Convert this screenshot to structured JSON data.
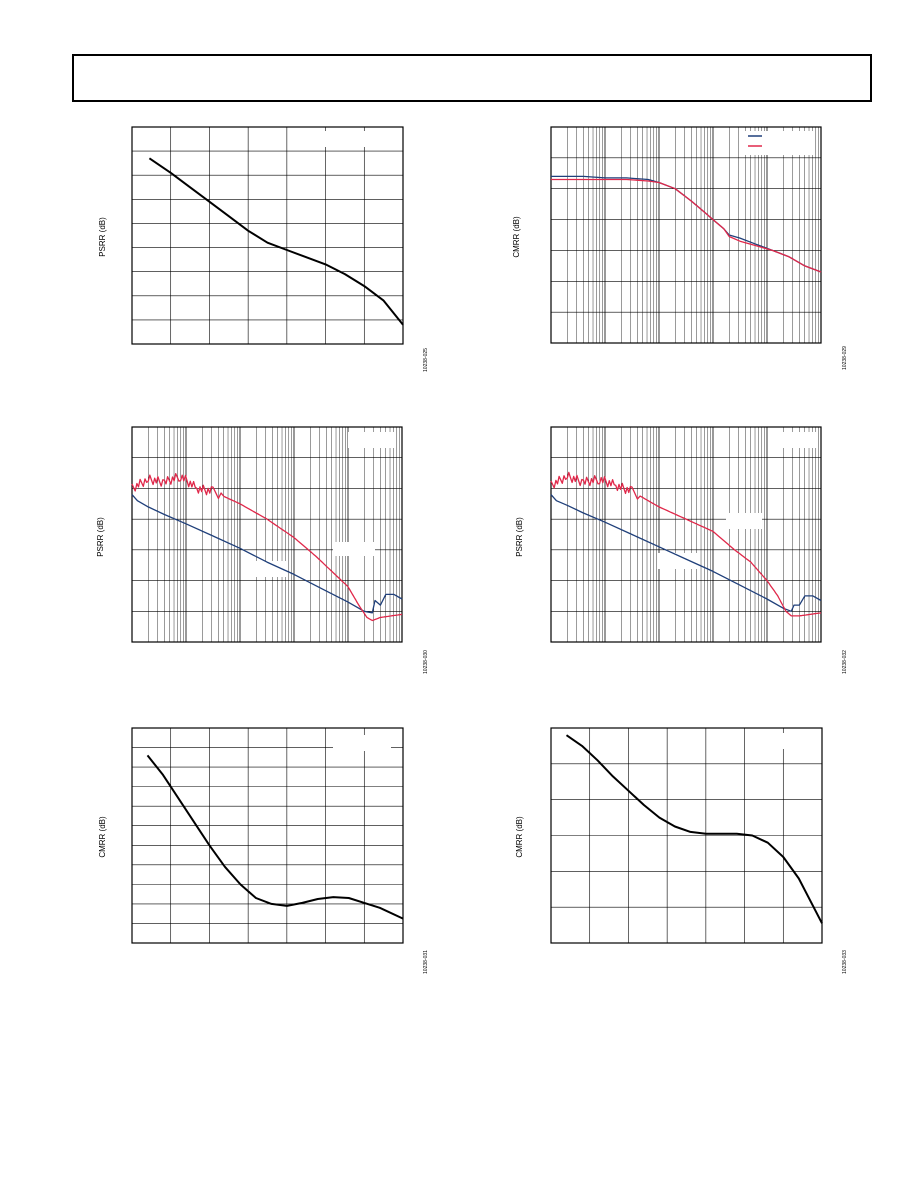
{
  "page": {
    "header_text": ""
  },
  "colors": {
    "black": "#000000",
    "blue": "#1f3f7a",
    "red": "#e0284a",
    "grid": "#000000"
  },
  "chart_data": [
    {
      "id": "psrr-top-left",
      "type": "line",
      "title": "",
      "xlabel": "",
      "ylabel": "PSRR (dB)",
      "figure_id": "10238-025",
      "x_scale": "linear",
      "x_divisions": 7,
      "y_divisions": 9,
      "xlim": [
        0,
        7
      ],
      "ylim": [
        0,
        9
      ],
      "legend": "top-right (blank box)",
      "series": [
        {
          "color": "black",
          "x": [
            0.45,
            1.0,
            1.5,
            2.0,
            2.5,
            3.0,
            3.5,
            4.0,
            4.5,
            5.0,
            5.5,
            6.0,
            6.5,
            7.0
          ],
          "y": [
            7.7,
            7.1,
            6.5,
            5.9,
            5.3,
            4.7,
            4.2,
            3.9,
            3.6,
            3.3,
            2.9,
            2.4,
            1.8,
            0.8
          ]
        }
      ]
    },
    {
      "id": "cmrr-top-right",
      "type": "line",
      "title": "",
      "xlabel": "",
      "ylabel": "CMRR (dB)",
      "figure_id": "10238-029",
      "x_scale": "log",
      "x_decades": 5,
      "y_divisions": 7,
      "xlim": [
        0,
        5
      ],
      "ylim": [
        0,
        7
      ],
      "legend": "top-right",
      "series": [
        {
          "color": "blue",
          "x": [
            0.0,
            0.3,
            0.6,
            1.0,
            1.4,
            1.8,
            2.0,
            2.3,
            2.6,
            2.8,
            3.0,
            3.2,
            3.3,
            3.5,
            3.8,
            4.1,
            4.4,
            4.7,
            5.0
          ],
          "y": [
            5.4,
            5.4,
            5.4,
            5.35,
            5.35,
            5.3,
            5.2,
            5.0,
            4.6,
            4.3,
            4.0,
            3.7,
            3.5,
            3.4,
            3.2,
            3.0,
            2.8,
            2.5,
            2.3
          ]
        },
        {
          "color": "red",
          "x": [
            0.0,
            0.3,
            0.6,
            1.0,
            1.4,
            1.8,
            2.0,
            2.3,
            2.6,
            2.8,
            3.0,
            3.2,
            3.3,
            3.5,
            3.8,
            4.1,
            4.4,
            4.7,
            5.0
          ],
          "y": [
            5.3,
            5.3,
            5.3,
            5.3,
            5.3,
            5.25,
            5.2,
            5.0,
            4.6,
            4.3,
            4.0,
            3.7,
            3.45,
            3.3,
            3.15,
            3.0,
            2.8,
            2.5,
            2.3
          ]
        }
      ]
    },
    {
      "id": "psrr-mid-left",
      "type": "line",
      "title": "",
      "xlabel": "",
      "ylabel": "PSRR (dB)",
      "figure_id": "10238-030",
      "x_scale": "log",
      "x_decades": 5,
      "y_divisions": 7,
      "xlim": [
        0,
        5
      ],
      "ylim": [
        0,
        7
      ],
      "legend": "top-right (blank box)",
      "series": [
        {
          "color": "blue",
          "x": [
            0.0,
            0.1,
            0.3,
            0.6,
            1.0,
            1.5,
            2.0,
            2.5,
            3.0,
            3.5,
            4.0,
            4.3,
            4.45,
            4.5,
            4.6,
            4.7,
            4.85,
            5.0
          ],
          "y": [
            4.8,
            4.6,
            4.4,
            4.15,
            3.85,
            3.45,
            3.05,
            2.6,
            2.2,
            1.75,
            1.3,
            1.0,
            0.95,
            1.35,
            1.2,
            1.55,
            1.55,
            1.4
          ]
        },
        {
          "color": "red",
          "x": [
            0.0,
            0.3,
            0.6,
            0.9,
            1.2,
            1.5,
            2.0,
            2.5,
            3.0,
            3.4,
            3.7,
            4.0,
            4.2,
            4.35,
            4.45,
            4.6,
            4.8,
            5.0
          ],
          "y": [
            5.0,
            5.3,
            5.2,
            5.4,
            5.0,
            4.9,
            4.5,
            4.0,
            3.4,
            2.8,
            2.3,
            1.8,
            1.2,
            0.8,
            0.7,
            0.8,
            0.85,
            0.9
          ]
        }
      ]
    },
    {
      "id": "psrr-mid-right",
      "type": "line",
      "title": "",
      "xlabel": "",
      "ylabel": "PSRR (dB)",
      "figure_id": "10238-032",
      "x_scale": "log",
      "x_decades": 5,
      "y_divisions": 7,
      "xlim": [
        0,
        5
      ],
      "ylim": [
        0,
        7
      ],
      "legend": "top-right (blank box)",
      "series": [
        {
          "color": "blue",
          "x": [
            0.0,
            0.1,
            0.3,
            0.6,
            1.0,
            1.5,
            2.0,
            2.5,
            3.0,
            3.5,
            4.0,
            4.3,
            4.45,
            4.5,
            4.6,
            4.7,
            4.85,
            5.0
          ],
          "y": [
            4.8,
            4.6,
            4.45,
            4.2,
            3.9,
            3.5,
            3.1,
            2.7,
            2.3,
            1.85,
            1.4,
            1.1,
            1.0,
            1.2,
            1.2,
            1.5,
            1.5,
            1.35
          ]
        },
        {
          "color": "red",
          "x": [
            0.0,
            0.3,
            0.6,
            0.9,
            1.2,
            1.5,
            2.0,
            2.5,
            3.0,
            3.4,
            3.7,
            4.0,
            4.2,
            4.35,
            4.45,
            4.6,
            4.8,
            5.0
          ],
          "y": [
            5.1,
            5.4,
            5.2,
            5.3,
            5.1,
            4.9,
            4.4,
            4.0,
            3.6,
            3.0,
            2.6,
            2.0,
            1.5,
            1.0,
            0.85,
            0.85,
            0.9,
            0.95
          ]
        }
      ]
    },
    {
      "id": "cmrr-bottom-left",
      "type": "line",
      "title": "",
      "xlabel": "",
      "ylabel": "CMRR (dB)",
      "figure_id": "10238-031",
      "x_scale": "linear",
      "x_divisions": 7,
      "y_divisions": 11,
      "xlim": [
        0,
        7
      ],
      "ylim": [
        0,
        11
      ],
      "legend": "top-right (blank box)",
      "series": [
        {
          "color": "black",
          "x": [
            0.4,
            0.8,
            1.2,
            1.6,
            2.0,
            2.4,
            2.8,
            3.2,
            3.6,
            4.0,
            4.4,
            4.8,
            5.2,
            5.6,
            6.0,
            6.4,
            7.0
          ],
          "y": [
            9.6,
            8.6,
            7.4,
            6.2,
            5.0,
            3.9,
            3.0,
            2.3,
            2.0,
            1.9,
            2.05,
            2.25,
            2.35,
            2.3,
            2.05,
            1.8,
            1.25
          ]
        }
      ]
    },
    {
      "id": "cmrr-bottom-right",
      "type": "line",
      "title": "",
      "xlabel": "",
      "ylabel": "CMRR (dB)",
      "figure_id": "10238-033",
      "x_scale": "linear",
      "x_divisions": 7,
      "y_divisions": 6,
      "xlim": [
        0,
        7
      ],
      "ylim": [
        0,
        6
      ],
      "legend": "top-right (blank box)",
      "series": [
        {
          "color": "black",
          "x": [
            0.4,
            0.8,
            1.2,
            1.6,
            2.0,
            2.4,
            2.8,
            3.2,
            3.6,
            4.0,
            4.4,
            4.8,
            5.2,
            5.6,
            6.0,
            6.4,
            7.0
          ],
          "y": [
            5.8,
            5.5,
            5.1,
            4.65,
            4.25,
            3.85,
            3.5,
            3.25,
            3.1,
            3.05,
            3.05,
            3.05,
            3.0,
            2.8,
            2.4,
            1.8,
            0.55
          ]
        }
      ]
    }
  ]
}
